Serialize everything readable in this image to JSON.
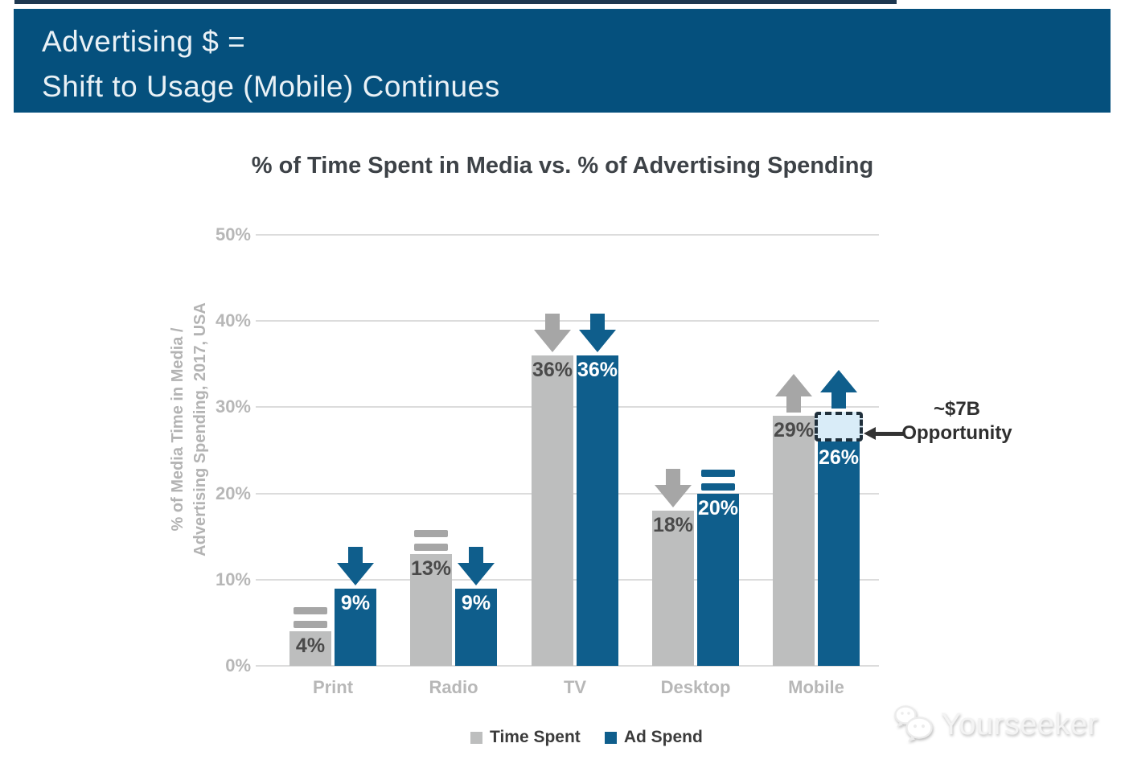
{
  "header": {
    "title_line1": "Advertising $ =",
    "title_line2": "Shift to Usage (Mobile) Continues",
    "bg_color": "#05507d",
    "text_color": "#e9f1f6"
  },
  "chart_data": {
    "type": "bar",
    "variant": "grouped",
    "title": "% of Time Spent in Media vs. % of Advertising Spending",
    "ylabel_line1": "% of Media Time in Media /",
    "ylabel_line2": "Advertising Spending, 2017, USA",
    "categories": [
      "Print",
      "Radio",
      "TV",
      "Desktop",
      "Mobile"
    ],
    "series": [
      {
        "name": "Time Spent",
        "color": "#bdbebe",
        "marker_color": "#a6a6a6",
        "label_color": "#4a4a4a",
        "values": [
          4,
          13,
          36,
          18,
          29
        ],
        "value_labels": [
          "4%",
          "13%",
          "36%",
          "18%",
          "29%"
        ],
        "trend_markers": [
          "equal",
          "equal",
          "down",
          "down",
          "up"
        ]
      },
      {
        "name": "Ad Spend",
        "color": "#0f5e8c",
        "marker_color": "#0f5e8c",
        "label_color": "#ffffff",
        "values": [
          9,
          9,
          36,
          20,
          26
        ],
        "value_labels": [
          "9%",
          "9%",
          "36%",
          "20%",
          "26%"
        ],
        "trend_markers": [
          "down",
          "down",
          "down",
          "equal",
          "up"
        ]
      }
    ],
    "ylim": [
      0,
      50
    ],
    "ytick_labels": [
      "0%",
      "10%",
      "20%",
      "30%",
      "40%",
      "50%"
    ],
    "grid": "horizontal",
    "legend_position": "bottom-center",
    "annotation": {
      "line1": "~$7B",
      "line2": "Opportunity",
      "target_category": "Mobile",
      "target_series": "Ad Spend",
      "box_from_pct": 26,
      "box_to_pct": 29.5,
      "box_fill": "#d9ecf8",
      "box_border": "#20303c"
    }
  },
  "watermark": {
    "text": "Yourseeker",
    "icon": "wechat-logo-icon"
  }
}
